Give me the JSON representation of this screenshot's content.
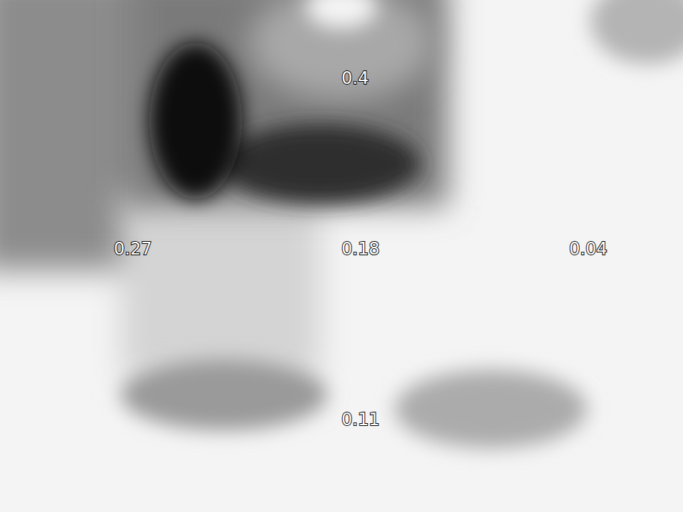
{
  "chart_data": {
    "type": "heatmap",
    "tick_labels": false,
    "data_labels": true,
    "cells": [
      {
        "row": 0,
        "col": 1,
        "value": 0.4
      },
      {
        "row": 1,
        "col": 0,
        "value": 0.27
      },
      {
        "row": 1,
        "col": 1,
        "value": 0.18
      },
      {
        "row": 1,
        "col": 2,
        "value": 0.04
      },
      {
        "row": 2,
        "col": 1,
        "value": 0.11
      }
    ]
  }
}
